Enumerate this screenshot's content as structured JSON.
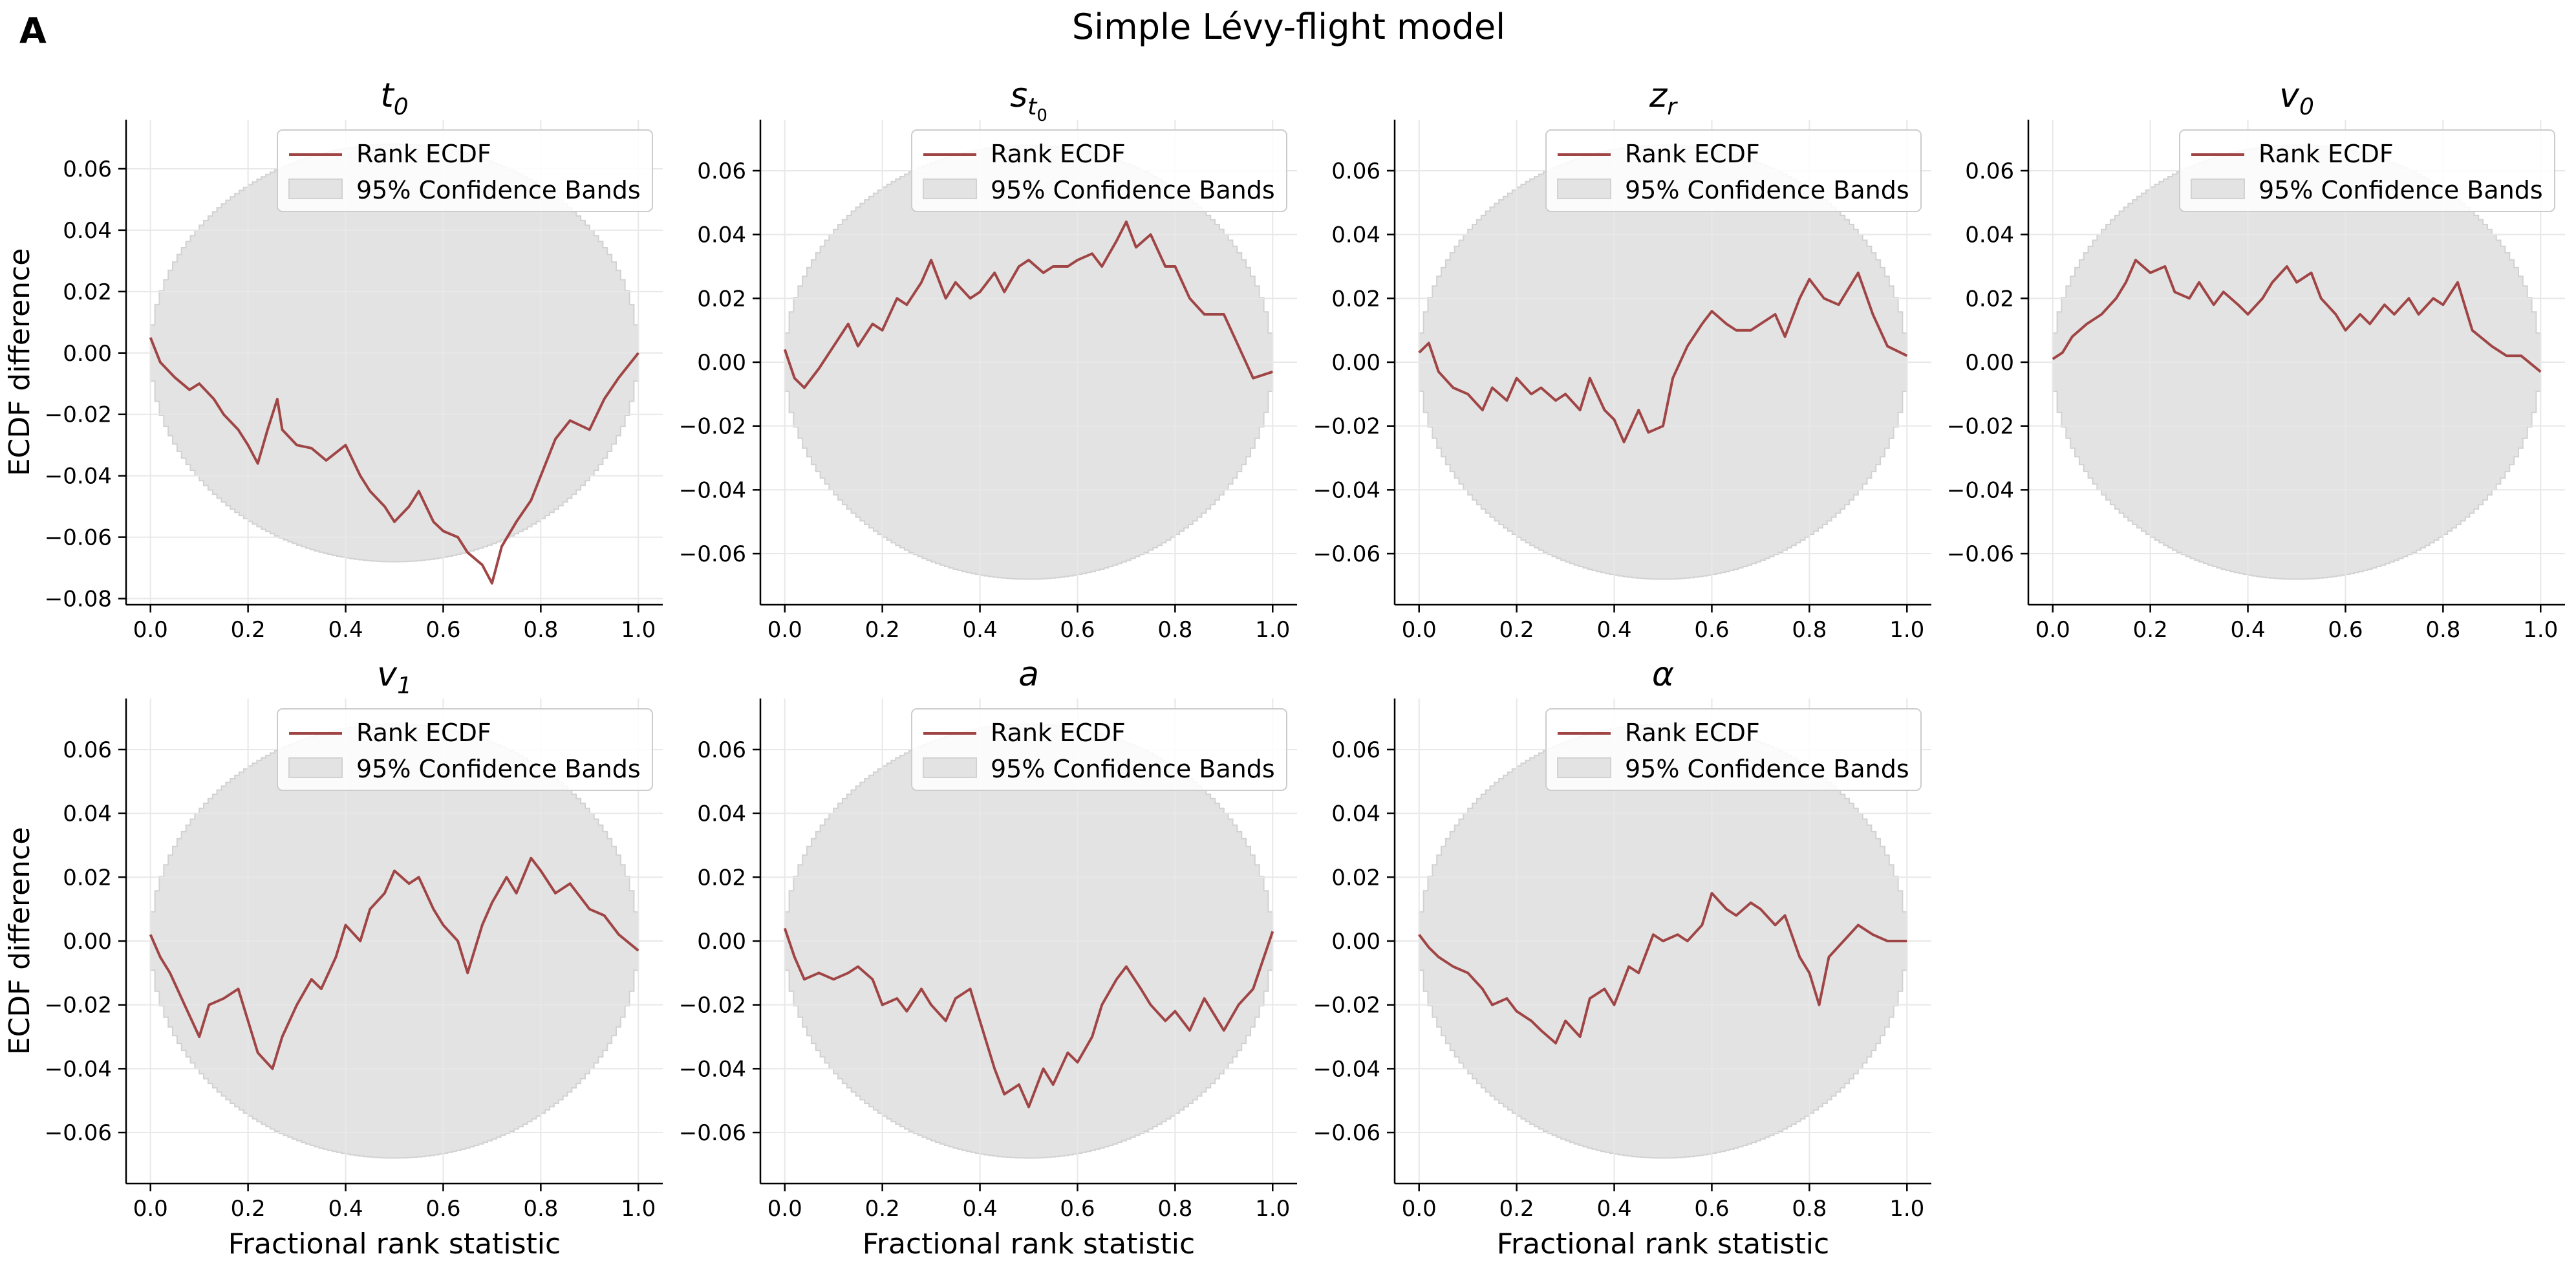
{
  "figure": {
    "panel_letter": "A",
    "suptitle": "Simple Lévy-flight model"
  },
  "colors": {
    "line": "#a04545",
    "band_fill": "#e3e3e3",
    "band_edge": "#d2d2d2",
    "grid": "#e8e8e8",
    "axis": "#000000"
  },
  "chart_data": [
    {
      "type": "line",
      "title": "t0",
      "title_main": "t",
      "title_sub": "0",
      "xlabel": "",
      "ylabel": "ECDF difference",
      "xlim": [
        -0.05,
        1.05
      ],
      "ylim": [
        -0.082,
        0.076
      ],
      "xticks": [
        0.0,
        0.2,
        0.4,
        0.6,
        0.8,
        1.0
      ],
      "xtick_labels": [
        "0.0",
        "0.2",
        "0.4",
        "0.6",
        "0.8",
        "1.0"
      ],
      "yticks": [
        -0.08,
        -0.06,
        -0.04,
        -0.02,
        0.0,
        0.02,
        0.04,
        0.06
      ],
      "ytick_labels": [
        "−0.08",
        "−0.06",
        "−0.04",
        "−0.02",
        "0.00",
        "0.02",
        "0.04",
        "0.06"
      ],
      "band_halfwidth_max": 0.068,
      "legend": [
        "Rank ECDF",
        "95% Confidence Bands"
      ],
      "legend_loc": "upper right",
      "grid": true,
      "series": [
        {
          "name": "Rank ECDF",
          "x": [
            0.0,
            0.02,
            0.05,
            0.08,
            0.1,
            0.13,
            0.15,
            0.18,
            0.2,
            0.22,
            0.24,
            0.26,
            0.27,
            0.3,
            0.33,
            0.36,
            0.4,
            0.43,
            0.45,
            0.48,
            0.5,
            0.53,
            0.55,
            0.58,
            0.6,
            0.63,
            0.65,
            0.68,
            0.7,
            0.72,
            0.75,
            0.78,
            0.8,
            0.83,
            0.86,
            0.9,
            0.93,
            0.96,
            1.0
          ],
          "y": [
            0.005,
            -0.003,
            -0.008,
            -0.012,
            -0.01,
            -0.015,
            -0.02,
            -0.025,
            -0.03,
            -0.036,
            -0.025,
            -0.015,
            -0.025,
            -0.03,
            -0.031,
            -0.035,
            -0.03,
            -0.04,
            -0.045,
            -0.05,
            -0.055,
            -0.05,
            -0.045,
            -0.055,
            -0.058,
            -0.06,
            -0.065,
            -0.069,
            -0.075,
            -0.063,
            -0.055,
            -0.048,
            -0.04,
            -0.028,
            -0.022,
            -0.025,
            -0.015,
            -0.008,
            0.0
          ]
        }
      ]
    },
    {
      "type": "line",
      "title": "s_t0",
      "title_main": "s",
      "title_sub": "t",
      "title_subsub": "0",
      "xlabel": "",
      "ylabel": "",
      "xlim": [
        -0.05,
        1.05
      ],
      "ylim": [
        -0.076,
        0.076
      ],
      "xticks": [
        0.0,
        0.2,
        0.4,
        0.6,
        0.8,
        1.0
      ],
      "xtick_labels": [
        "0.0",
        "0.2",
        "0.4",
        "0.6",
        "0.8",
        "1.0"
      ],
      "yticks": [
        -0.06,
        -0.04,
        -0.02,
        0.0,
        0.02,
        0.04,
        0.06
      ],
      "ytick_labels": [
        "−0.06",
        "−0.04",
        "−0.02",
        "0.00",
        "0.02",
        "0.04",
        "0.06"
      ],
      "band_halfwidth_max": 0.068,
      "legend": [
        "Rank ECDF",
        "95% Confidence Bands"
      ],
      "legend_loc": "upper right",
      "grid": true,
      "series": [
        {
          "name": "Rank ECDF",
          "x": [
            0.0,
            0.02,
            0.04,
            0.07,
            0.1,
            0.13,
            0.15,
            0.18,
            0.2,
            0.23,
            0.25,
            0.28,
            0.3,
            0.33,
            0.35,
            0.38,
            0.4,
            0.43,
            0.45,
            0.48,
            0.5,
            0.53,
            0.55,
            0.58,
            0.6,
            0.63,
            0.65,
            0.68,
            0.7,
            0.72,
            0.75,
            0.78,
            0.8,
            0.83,
            0.86,
            0.9,
            0.93,
            0.96,
            1.0
          ],
          "y": [
            0.004,
            -0.005,
            -0.008,
            -0.002,
            0.005,
            0.012,
            0.005,
            0.012,
            0.01,
            0.02,
            0.018,
            0.025,
            0.032,
            0.02,
            0.025,
            0.02,
            0.022,
            0.028,
            0.022,
            0.03,
            0.032,
            0.028,
            0.03,
            0.03,
            0.032,
            0.034,
            0.03,
            0.038,
            0.044,
            0.036,
            0.04,
            0.03,
            0.03,
            0.02,
            0.015,
            0.015,
            0.005,
            -0.005,
            -0.003
          ]
        }
      ]
    },
    {
      "type": "line",
      "title": "z_r",
      "title_main": "z",
      "title_sub": "r",
      "xlabel": "",
      "ylabel": "",
      "xlim": [
        -0.05,
        1.05
      ],
      "ylim": [
        -0.076,
        0.076
      ],
      "xticks": [
        0.0,
        0.2,
        0.4,
        0.6,
        0.8,
        1.0
      ],
      "xtick_labels": [
        "0.0",
        "0.2",
        "0.4",
        "0.6",
        "0.8",
        "1.0"
      ],
      "yticks": [
        -0.06,
        -0.04,
        -0.02,
        0.0,
        0.02,
        0.04,
        0.06
      ],
      "ytick_labels": [
        "−0.06",
        "−0.04",
        "−0.02",
        "0.00",
        "0.02",
        "0.04",
        "0.06"
      ],
      "band_halfwidth_max": 0.068,
      "legend": [
        "Rank ECDF",
        "95% Confidence Bands"
      ],
      "legend_loc": "upper right",
      "grid": true,
      "series": [
        {
          "name": "Rank ECDF",
          "x": [
            0.0,
            0.02,
            0.04,
            0.07,
            0.1,
            0.13,
            0.15,
            0.18,
            0.2,
            0.23,
            0.25,
            0.28,
            0.3,
            0.33,
            0.35,
            0.38,
            0.4,
            0.42,
            0.45,
            0.47,
            0.5,
            0.52,
            0.55,
            0.58,
            0.6,
            0.63,
            0.65,
            0.68,
            0.7,
            0.73,
            0.75,
            0.78,
            0.8,
            0.83,
            0.86,
            0.9,
            0.93,
            0.96,
            1.0
          ],
          "y": [
            0.003,
            0.006,
            -0.003,
            -0.008,
            -0.01,
            -0.015,
            -0.008,
            -0.012,
            -0.005,
            -0.01,
            -0.008,
            -0.012,
            -0.01,
            -0.015,
            -0.005,
            -0.015,
            -0.018,
            -0.025,
            -0.015,
            -0.022,
            -0.02,
            -0.005,
            0.005,
            0.012,
            0.016,
            0.012,
            0.01,
            0.01,
            0.012,
            0.015,
            0.008,
            0.02,
            0.026,
            0.02,
            0.018,
            0.028,
            0.015,
            0.005,
            0.002
          ]
        }
      ]
    },
    {
      "type": "line",
      "title": "v0",
      "title_main": "v",
      "title_sub": "0",
      "xlabel": "",
      "ylabel": "",
      "xlim": [
        -0.05,
        1.05
      ],
      "ylim": [
        -0.076,
        0.076
      ],
      "xticks": [
        0.0,
        0.2,
        0.4,
        0.6,
        0.8,
        1.0
      ],
      "xtick_labels": [
        "0.0",
        "0.2",
        "0.4",
        "0.6",
        "0.8",
        "1.0"
      ],
      "yticks": [
        -0.06,
        -0.04,
        -0.02,
        0.0,
        0.02,
        0.04,
        0.06
      ],
      "ytick_labels": [
        "−0.06",
        "−0.04",
        "−0.02",
        "0.00",
        "0.02",
        "0.04",
        "0.06"
      ],
      "band_halfwidth_max": 0.068,
      "legend": [
        "Rank ECDF",
        "95% Confidence Bands"
      ],
      "legend_loc": "upper right",
      "grid": true,
      "series": [
        {
          "name": "Rank ECDF",
          "x": [
            0.0,
            0.02,
            0.04,
            0.07,
            0.1,
            0.13,
            0.15,
            0.17,
            0.2,
            0.23,
            0.25,
            0.28,
            0.3,
            0.33,
            0.35,
            0.38,
            0.4,
            0.43,
            0.45,
            0.48,
            0.5,
            0.53,
            0.55,
            0.58,
            0.6,
            0.63,
            0.65,
            0.68,
            0.7,
            0.73,
            0.75,
            0.78,
            0.8,
            0.83,
            0.86,
            0.9,
            0.93,
            0.96,
            1.0
          ],
          "y": [
            0.001,
            0.003,
            0.008,
            0.012,
            0.015,
            0.02,
            0.025,
            0.032,
            0.028,
            0.03,
            0.022,
            0.02,
            0.025,
            0.018,
            0.022,
            0.018,
            0.015,
            0.02,
            0.025,
            0.03,
            0.025,
            0.028,
            0.02,
            0.015,
            0.01,
            0.015,
            0.012,
            0.018,
            0.015,
            0.02,
            0.015,
            0.02,
            0.018,
            0.025,
            0.01,
            0.005,
            0.002,
            0.002,
            -0.003
          ]
        }
      ]
    },
    {
      "type": "line",
      "title": "v1",
      "title_main": "v",
      "title_sub": "1",
      "xlabel": "Fractional rank statistic",
      "ylabel": "ECDF difference",
      "xlim": [
        -0.05,
        1.05
      ],
      "ylim": [
        -0.076,
        0.076
      ],
      "xticks": [
        0.0,
        0.2,
        0.4,
        0.6,
        0.8,
        1.0
      ],
      "xtick_labels": [
        "0.0",
        "0.2",
        "0.4",
        "0.6",
        "0.8",
        "1.0"
      ],
      "yticks": [
        -0.06,
        -0.04,
        -0.02,
        0.0,
        0.02,
        0.04,
        0.06
      ],
      "ytick_labels": [
        "−0.06",
        "−0.04",
        "−0.02",
        "0.00",
        "0.02",
        "0.04",
        "0.06"
      ],
      "band_halfwidth_max": 0.068,
      "legend": [
        "Rank ECDF",
        "95% Confidence Bands"
      ],
      "legend_loc": "upper right",
      "grid": true,
      "series": [
        {
          "name": "Rank ECDF",
          "x": [
            0.0,
            0.02,
            0.04,
            0.07,
            0.1,
            0.12,
            0.15,
            0.18,
            0.2,
            0.22,
            0.25,
            0.27,
            0.3,
            0.33,
            0.35,
            0.38,
            0.4,
            0.43,
            0.45,
            0.48,
            0.5,
            0.53,
            0.55,
            0.58,
            0.6,
            0.63,
            0.65,
            0.68,
            0.7,
            0.73,
            0.75,
            0.78,
            0.8,
            0.83,
            0.86,
            0.9,
            0.93,
            0.96,
            1.0
          ],
          "y": [
            0.002,
            -0.005,
            -0.01,
            -0.02,
            -0.03,
            -0.02,
            -0.018,
            -0.015,
            -0.025,
            -0.035,
            -0.04,
            -0.03,
            -0.02,
            -0.012,
            -0.015,
            -0.005,
            0.005,
            0.0,
            0.01,
            0.015,
            0.022,
            0.018,
            0.02,
            0.01,
            0.005,
            0.0,
            -0.01,
            0.005,
            0.012,
            0.02,
            0.015,
            0.026,
            0.022,
            0.015,
            0.018,
            0.01,
            0.008,
            0.002,
            -0.003
          ]
        }
      ]
    },
    {
      "type": "line",
      "title": "a",
      "title_main": "a",
      "title_sub": "",
      "xlabel": "Fractional rank statistic",
      "ylabel": "",
      "xlim": [
        -0.05,
        1.05
      ],
      "ylim": [
        -0.076,
        0.076
      ],
      "xticks": [
        0.0,
        0.2,
        0.4,
        0.6,
        0.8,
        1.0
      ],
      "xtick_labels": [
        "0.0",
        "0.2",
        "0.4",
        "0.6",
        "0.8",
        "1.0"
      ],
      "yticks": [
        -0.06,
        -0.04,
        -0.02,
        0.0,
        0.02,
        0.04,
        0.06
      ],
      "ytick_labels": [
        "−0.06",
        "−0.04",
        "−0.02",
        "0.00",
        "0.02",
        "0.04",
        "0.06"
      ],
      "band_halfwidth_max": 0.068,
      "legend": [
        "Rank ECDF",
        "95% Confidence Bands"
      ],
      "legend_loc": "upper right",
      "grid": true,
      "series": [
        {
          "name": "Rank ECDF",
          "x": [
            0.0,
            0.02,
            0.04,
            0.07,
            0.1,
            0.13,
            0.15,
            0.18,
            0.2,
            0.23,
            0.25,
            0.28,
            0.3,
            0.33,
            0.35,
            0.38,
            0.4,
            0.43,
            0.45,
            0.48,
            0.5,
            0.53,
            0.55,
            0.58,
            0.6,
            0.63,
            0.65,
            0.68,
            0.7,
            0.73,
            0.75,
            0.78,
            0.8,
            0.83,
            0.86,
            0.9,
            0.93,
            0.96,
            1.0
          ],
          "y": [
            0.004,
            -0.005,
            -0.012,
            -0.01,
            -0.012,
            -0.01,
            -0.008,
            -0.012,
            -0.02,
            -0.018,
            -0.022,
            -0.015,
            -0.02,
            -0.025,
            -0.018,
            -0.015,
            -0.025,
            -0.04,
            -0.048,
            -0.045,
            -0.052,
            -0.04,
            -0.045,
            -0.035,
            -0.038,
            -0.03,
            -0.02,
            -0.012,
            -0.008,
            -0.015,
            -0.02,
            -0.025,
            -0.022,
            -0.028,
            -0.018,
            -0.028,
            -0.02,
            -0.015,
            0.003
          ]
        }
      ]
    },
    {
      "type": "line",
      "title": "α",
      "title_main": "α",
      "title_sub": "",
      "xlabel": "Fractional rank statistic",
      "ylabel": "",
      "xlim": [
        -0.05,
        1.05
      ],
      "ylim": [
        -0.076,
        0.076
      ],
      "xticks": [
        0.0,
        0.2,
        0.4,
        0.6,
        0.8,
        1.0
      ],
      "xtick_labels": [
        "0.0",
        "0.2",
        "0.4",
        "0.6",
        "0.8",
        "1.0"
      ],
      "yticks": [
        -0.06,
        -0.04,
        -0.02,
        0.0,
        0.02,
        0.04,
        0.06
      ],
      "ytick_labels": [
        "−0.06",
        "−0.04",
        "−0.02",
        "0.00",
        "0.02",
        "0.04",
        "0.06"
      ],
      "band_halfwidth_max": 0.068,
      "legend": [
        "Rank ECDF",
        "95% Confidence Bands"
      ],
      "legend_loc": "upper right",
      "grid": true,
      "series": [
        {
          "name": "Rank ECDF",
          "x": [
            0.0,
            0.02,
            0.04,
            0.07,
            0.1,
            0.13,
            0.15,
            0.18,
            0.2,
            0.23,
            0.25,
            0.28,
            0.3,
            0.33,
            0.35,
            0.38,
            0.4,
            0.43,
            0.45,
            0.48,
            0.5,
            0.53,
            0.55,
            0.58,
            0.6,
            0.63,
            0.65,
            0.68,
            0.7,
            0.73,
            0.75,
            0.78,
            0.8,
            0.82,
            0.84,
            0.87,
            0.9,
            0.93,
            0.96,
            1.0
          ],
          "y": [
            0.002,
            -0.002,
            -0.005,
            -0.008,
            -0.01,
            -0.015,
            -0.02,
            -0.018,
            -0.022,
            -0.025,
            -0.028,
            -0.032,
            -0.025,
            -0.03,
            -0.018,
            -0.015,
            -0.02,
            -0.008,
            -0.01,
            0.002,
            0.0,
            0.002,
            0.0,
            0.005,
            0.015,
            0.01,
            0.008,
            0.012,
            0.01,
            0.005,
            0.008,
            -0.005,
            -0.01,
            -0.02,
            -0.005,
            0.0,
            0.005,
            0.002,
            0.0,
            0.0
          ]
        }
      ]
    }
  ]
}
